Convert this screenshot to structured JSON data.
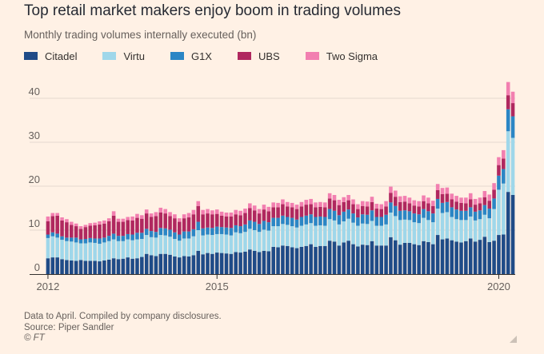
{
  "title": "Top retail market makers enjoy boom in trading volumes",
  "subtitle": "Monthly trading volumes internally executed (bn)",
  "footnote": {
    "line1": "Data to April. Compiled by company disclosures.",
    "line2": "Source: Piper Sandler",
    "line3": "© FT"
  },
  "colors": {
    "background": "#fff1e5",
    "gridline": "#e6d9ce",
    "axis": "#66605c",
    "Citadel": "#1f4b87",
    "Virtu": "#9fd7ea",
    "G1X": "#2b86c5",
    "UBS": "#b0285f",
    "Two Sigma": "#f27fb0"
  },
  "chart_data": {
    "type": "bar",
    "stacked": true,
    "title": "Monthly trading volumes internally executed (bn)",
    "xlabel": "",
    "ylabel": "",
    "ylim": [
      0,
      46
    ],
    "yticks": [
      0,
      10,
      20,
      30,
      40
    ],
    "xticks": [
      {
        "label": "2012",
        "month": "2012-01"
      },
      {
        "label": "2015",
        "month": "2015-01"
      },
      {
        "label": "2020",
        "month": "2020-01"
      }
    ],
    "grid": true,
    "legend_position": "top-left",
    "categories": [
      "2012-01",
      "2012-02",
      "2012-03",
      "2012-04",
      "2012-05",
      "2012-06",
      "2012-07",
      "2012-08",
      "2012-09",
      "2012-10",
      "2012-11",
      "2012-12",
      "2013-01",
      "2013-02",
      "2013-03",
      "2013-04",
      "2013-05",
      "2013-06",
      "2013-07",
      "2013-08",
      "2013-09",
      "2013-10",
      "2013-11",
      "2013-12",
      "2014-01",
      "2014-02",
      "2014-03",
      "2014-04",
      "2014-05",
      "2014-06",
      "2014-07",
      "2014-08",
      "2014-09",
      "2014-10",
      "2014-11",
      "2014-12",
      "2015-01",
      "2015-02",
      "2015-03",
      "2015-04",
      "2015-05",
      "2015-06",
      "2015-07",
      "2015-08",
      "2015-09",
      "2015-10",
      "2015-11",
      "2015-12",
      "2016-01",
      "2016-02",
      "2016-03",
      "2016-04",
      "2016-05",
      "2016-06",
      "2016-07",
      "2016-08",
      "2016-09",
      "2016-10",
      "2016-11",
      "2016-12",
      "2017-01",
      "2017-02",
      "2017-03",
      "2017-04",
      "2017-05",
      "2017-06",
      "2017-07",
      "2017-08",
      "2017-09",
      "2017-10",
      "2017-11",
      "2017-12",
      "2018-01",
      "2018-02",
      "2018-03",
      "2018-04",
      "2018-05",
      "2018-06",
      "2018-07",
      "2018-08",
      "2018-09",
      "2018-10",
      "2018-11",
      "2018-12",
      "2019-01",
      "2019-02",
      "2019-03",
      "2019-04",
      "2019-05",
      "2019-06",
      "2019-07",
      "2019-08",
      "2019-09",
      "2019-10",
      "2019-11",
      "2019-12",
      "2020-01",
      "2020-02",
      "2020-03",
      "2020-04"
    ],
    "series": [
      {
        "name": "Citadel",
        "values": [
          3.6,
          3.8,
          3.8,
          3.4,
          3.2,
          3.1,
          3.0,
          3.2,
          3.0,
          3.0,
          3.0,
          2.9,
          3.1,
          3.3,
          3.6,
          3.4,
          3.5,
          3.8,
          3.5,
          3.6,
          3.9,
          4.6,
          4.3,
          4.1,
          4.6,
          4.6,
          4.4,
          4.0,
          3.8,
          4.1,
          4.0,
          4.3,
          5.3,
          4.5,
          4.8,
          4.6,
          4.9,
          4.8,
          4.7,
          4.6,
          5.0,
          4.9,
          5.1,
          5.6,
          5.3,
          5.0,
          5.3,
          5.2,
          6.2,
          6.1,
          6.5,
          6.4,
          6.1,
          5.9,
          6.2,
          6.4,
          6.8,
          6.2,
          6.4,
          6.4,
          7.6,
          7.4,
          6.5,
          7.2,
          7.6,
          6.8,
          6.3,
          6.7,
          6.6,
          7.5,
          6.5,
          6.5,
          6.5,
          8.4,
          7.7,
          6.7,
          7.1,
          7.1,
          6.8,
          6.6,
          7.5,
          7.3,
          6.8,
          8.9,
          7.9,
          8.1,
          7.7,
          7.4,
          7.2,
          7.5,
          8.1,
          7.4,
          7.8,
          8.5,
          7.3,
          7.6,
          8.9,
          9.0,
          18.7,
          18.0
        ]
      },
      {
        "name": "Virtu",
        "values": [
          4.6,
          4.8,
          4.5,
          4.4,
          4.3,
          4.3,
          4.2,
          3.8,
          4.0,
          4.2,
          4.1,
          4.0,
          4.1,
          4.2,
          4.3,
          4.1,
          4.0,
          4.1,
          4.2,
          4.3,
          4.1,
          4.3,
          4.1,
          4.2,
          4.3,
          4.2,
          4.1,
          4.0,
          3.8,
          4.0,
          4.1,
          4.3,
          4.7,
          4.3,
          4.2,
          4.3,
          4.2,
          4.3,
          4.3,
          4.2,
          4.5,
          4.4,
          4.5,
          4.7,
          4.7,
          4.6,
          4.8,
          4.7,
          4.7,
          4.8,
          4.9,
          4.8,
          4.8,
          4.7,
          4.8,
          4.9,
          4.8,
          4.8,
          4.7,
          4.6,
          4.9,
          4.8,
          4.8,
          4.8,
          5.0,
          4.9,
          4.7,
          4.8,
          4.8,
          4.6,
          4.5,
          4.5,
          4.8,
          5.6,
          5.5,
          5.6,
          5.3,
          5.2,
          5.0,
          5.0,
          5.3,
          5.0,
          5.0,
          6.0,
          6.0,
          6.0,
          5.3,
          5.1,
          5.1,
          4.8,
          5.0,
          4.8,
          4.7,
          5.0,
          5.4,
          7.2,
          10.3,
          11.6,
          13.8,
          13.0
        ]
      },
      {
        "name": "G1X",
        "values": [
          0.8,
          0.9,
          0.9,
          0.8,
          0.8,
          0.9,
          1.1,
          0.9,
          1.0,
          1.0,
          1.0,
          1.2,
          1.1,
          1.2,
          1.3,
          1.2,
          1.2,
          1.2,
          1.3,
          1.5,
          1.4,
          1.4,
          1.4,
          1.3,
          1.6,
          1.6,
          1.6,
          1.5,
          1.4,
          1.6,
          1.6,
          1.6,
          1.9,
          1.6,
          1.6,
          1.6,
          1.7,
          1.6,
          1.6,
          1.7,
          1.6,
          1.6,
          1.7,
          1.9,
          1.9,
          1.8,
          2.0,
          1.9,
          1.9,
          1.9,
          1.9,
          1.8,
          1.9,
          1.8,
          2.0,
          2.0,
          2.0,
          2.0,
          2.0,
          2.0,
          2.3,
          2.2,
          2.1,
          2.2,
          2.1,
          2.1,
          1.9,
          2.1,
          2.1,
          2.4,
          2.0,
          2.0,
          2.2,
          2.3,
          2.3,
          2.1,
          2.1,
          2.0,
          2.0,
          2.0,
          2.0,
          2.0,
          2.0,
          2.2,
          2.3,
          2.3,
          2.2,
          2.2,
          2.1,
          2.1,
          2.1,
          2.0,
          2.0,
          2.2,
          2.2,
          2.4,
          3.2,
          3.3,
          5.0,
          4.9
        ]
      },
      {
        "name": "UBS",
        "values": [
          3.0,
          3.7,
          4.1,
          3.6,
          3.5,
          2.9,
          2.6,
          2.4,
          2.7,
          2.8,
          3.0,
          3.2,
          3.2,
          3.3,
          4.1,
          3.2,
          3.2,
          3.2,
          3.2,
          3.4,
          3.2,
          3.5,
          3.2,
          3.6,
          3.5,
          3.4,
          3.1,
          3.2,
          2.9,
          3.0,
          3.2,
          3.4,
          3.6,
          3.2,
          3.2,
          3.1,
          2.9,
          2.6,
          2.5,
          2.6,
          2.5,
          2.5,
          2.6,
          2.8,
          2.6,
          2.4,
          2.6,
          2.5,
          2.4,
          2.4,
          2.6,
          2.4,
          2.4,
          2.4,
          2.4,
          2.5,
          2.3,
          2.2,
          2.2,
          2.2,
          2.4,
          2.4,
          2.3,
          2.2,
          2.1,
          2.1,
          1.9,
          1.9,
          1.9,
          1.9,
          1.9,
          1.8,
          1.9,
          2.2,
          2.1,
          2.0,
          2.0,
          1.8,
          1.8,
          1.8,
          1.8,
          1.8,
          1.7,
          2.0,
          2.0,
          1.9,
          1.8,
          1.8,
          1.8,
          1.7,
          1.8,
          1.6,
          1.6,
          1.8,
          1.8,
          2.0,
          2.4,
          2.4,
          3.2,
          3.0
        ]
      },
      {
        "name": "Two Sigma",
        "values": [
          1.1,
          0.7,
          0.6,
          0.7,
          0.7,
          0.7,
          0.6,
          0.6,
          0.5,
          0.6,
          0.6,
          0.7,
          0.7,
          0.7,
          1.0,
          0.7,
          0.7,
          0.7,
          0.9,
          0.9,
          0.8,
          0.9,
          0.8,
          0.9,
          1.1,
          1.0,
          0.9,
          0.9,
          0.8,
          0.9,
          1.0,
          1.0,
          1.1,
          1.0,
          1.0,
          0.9,
          1.0,
          0.9,
          0.9,
          0.9,
          1.0,
          1.0,
          1.0,
          1.1,
          1.1,
          1.0,
          1.1,
          1.0,
          1.1,
          1.0,
          1.1,
          1.0,
          1.0,
          1.0,
          1.0,
          1.1,
          1.2,
          1.1,
          1.1,
          1.1,
          1.2,
          1.2,
          1.2,
          1.1,
          1.2,
          1.1,
          1.1,
          1.1,
          1.1,
          1.2,
          1.1,
          1.1,
          1.2,
          1.4,
          1.4,
          1.3,
          1.3,
          1.3,
          1.2,
          1.2,
          1.3,
          1.3,
          1.2,
          1.4,
          1.4,
          1.4,
          1.3,
          1.3,
          1.2,
          1.3,
          1.4,
          1.3,
          1.3,
          1.4,
          1.4,
          1.5,
          1.8,
          1.9,
          3.0,
          2.6
        ]
      }
    ]
  }
}
